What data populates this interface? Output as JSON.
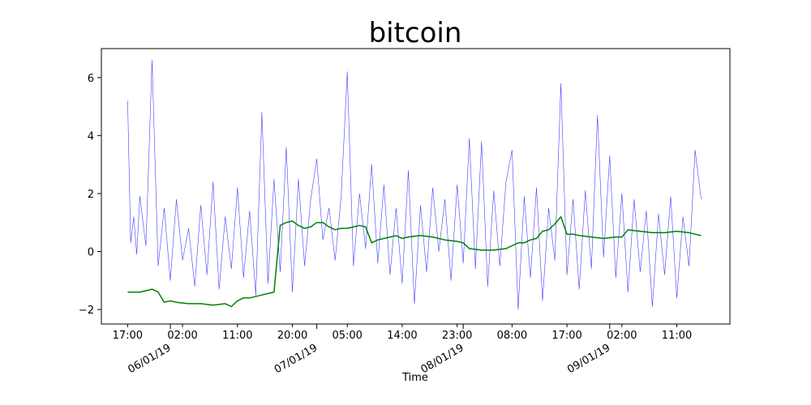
{
  "chart_data": {
    "type": "line",
    "title": "bitcoin",
    "xlabel": "Time",
    "ylabel": "",
    "ylim": [
      -2.5,
      7.0
    ],
    "xlim_hours": [
      -4.3,
      98.7
    ],
    "y_ticks": [
      -2,
      0,
      2,
      4,
      6
    ],
    "x_tick_hours": [
      0,
      9,
      18,
      27,
      36,
      45,
      54,
      63,
      72,
      81,
      90
    ],
    "x_tick_labels": [
      "17:00",
      "02:00",
      "11:00",
      "20:00",
      "05:00",
      "14:00",
      "23:00",
      "08:00",
      "17:00",
      "02:00",
      "11:00"
    ],
    "x_major_hours": [
      7,
      31,
      55,
      79
    ],
    "x_major_labels": [
      "06/01/19",
      "07/01/19",
      "08/01/19",
      "09/01/19"
    ],
    "grid": false,
    "legend": "none",
    "series": [
      {
        "color": "#0000ff",
        "style": "thin-noisy",
        "x_hours": [
          0,
          0.5,
          1,
          1.5,
          2,
          3,
          4,
          5,
          6,
          7,
          8,
          9,
          10,
          11,
          12,
          13,
          14,
          15,
          16,
          17,
          18,
          19,
          20,
          21,
          22,
          23,
          24,
          25,
          26,
          27,
          28,
          29,
          30,
          31,
          32,
          33,
          34,
          35,
          36,
          37,
          38,
          39,
          40,
          41,
          42,
          43,
          44,
          45,
          46,
          47,
          48,
          49,
          50,
          51,
          52,
          53,
          54,
          55,
          56,
          57,
          58,
          59,
          60,
          61,
          62,
          63,
          64,
          65,
          66,
          67,
          68,
          69,
          70,
          71,
          72,
          73,
          74,
          75,
          76,
          77,
          78,
          79,
          80,
          81,
          82,
          83,
          84,
          85,
          86,
          87,
          88,
          89,
          90,
          91,
          92,
          93,
          94
        ],
        "values": [
          5.2,
          0.3,
          1.2,
          -0.1,
          1.9,
          0.2,
          6.6,
          -0.5,
          1.5,
          -1.0,
          1.8,
          -0.3,
          0.8,
          -1.2,
          1.6,
          -0.8,
          2.4,
          -1.3,
          1.2,
          -0.6,
          2.2,
          -0.9,
          1.4,
          -1.5,
          4.8,
          -1.1,
          2.5,
          -0.7,
          3.6,
          -1.4,
          2.5,
          -0.5,
          1.8,
          3.2,
          0.4,
          1.5,
          -0.3,
          1.9,
          6.2,
          -0.5,
          2.0,
          0.1,
          3.0,
          -0.4,
          2.3,
          -0.8,
          1.5,
          -1.1,
          2.8,
          -1.8,
          1.6,
          -0.7,
          2.2,
          0.0,
          1.8,
          -1.0,
          2.3,
          -0.4,
          3.9,
          -0.6,
          3.8,
          -1.2,
          2.1,
          -0.5,
          2.4,
          3.5,
          -2.0,
          1.9,
          -0.9,
          2.2,
          -1.7,
          1.5,
          -0.3,
          5.8,
          -0.8,
          1.8,
          -1.3,
          2.1,
          -0.6,
          4.7,
          -0.2,
          3.3,
          -0.9,
          2.0,
          -1.4,
          1.8,
          -0.7,
          1.4,
          -1.9,
          1.3,
          -0.8,
          1.9,
          -1.6,
          1.2,
          -0.5,
          3.5,
          1.8
        ]
      },
      {
        "color": "#008000",
        "style": "rolling-mean",
        "x_hours": [
          0,
          2,
          4,
          5,
          6,
          7,
          8,
          10,
          12,
          14,
          16,
          17,
          18,
          19,
          20,
          22,
          23,
          24,
          25,
          25.5,
          26,
          27,
          28,
          29,
          30,
          31,
          32,
          33,
          34,
          35,
          36,
          37,
          38,
          39,
          40,
          41,
          42,
          43,
          44,
          45,
          46,
          48,
          50,
          52,
          54,
          55,
          56,
          58,
          60,
          62,
          64,
          65,
          66,
          67,
          68,
          69,
          70,
          71,
          72,
          73,
          74,
          76,
          78,
          80,
          81,
          82,
          84,
          86,
          88,
          90,
          92,
          93,
          94
        ],
        "values": [
          -1.4,
          -1.4,
          -1.3,
          -1.4,
          -1.75,
          -1.7,
          -1.75,
          -1.8,
          -1.8,
          -1.85,
          -1.8,
          -1.9,
          -1.7,
          -1.6,
          -1.6,
          -1.5,
          -1.45,
          -1.4,
          0.9,
          0.95,
          1.0,
          1.05,
          0.9,
          0.8,
          0.85,
          1.0,
          1.0,
          0.85,
          0.75,
          0.8,
          0.8,
          0.85,
          0.9,
          0.85,
          0.3,
          0.4,
          0.45,
          0.5,
          0.55,
          0.45,
          0.5,
          0.55,
          0.5,
          0.4,
          0.35,
          0.3,
          0.1,
          0.05,
          0.05,
          0.1,
          0.3,
          0.3,
          0.4,
          0.45,
          0.7,
          0.75,
          0.95,
          1.2,
          0.6,
          0.6,
          0.55,
          0.5,
          0.45,
          0.5,
          0.5,
          0.75,
          0.7,
          0.65,
          0.65,
          0.7,
          0.65,
          0.6,
          0.55
        ]
      }
    ]
  }
}
